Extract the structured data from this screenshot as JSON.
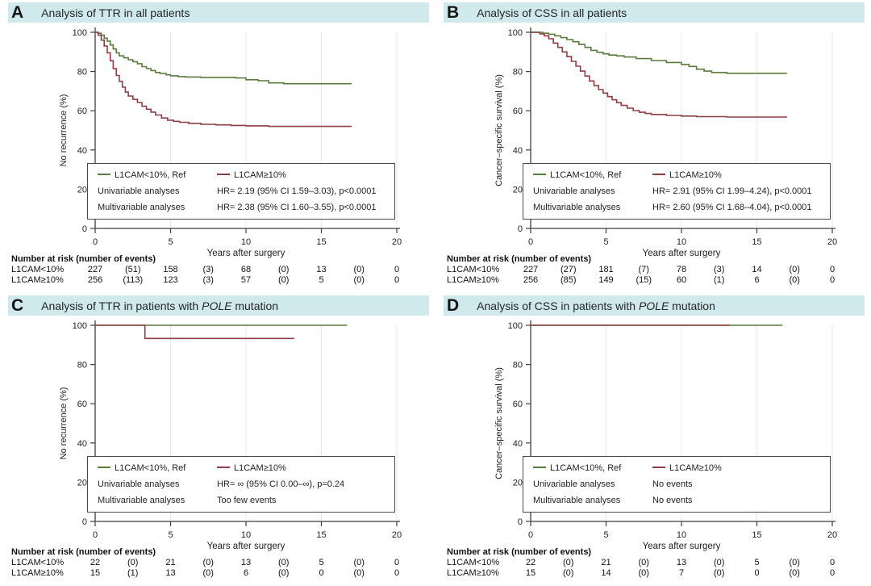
{
  "figure": {
    "colors": {
      "series_green": "#5a7a3e",
      "series_red": "#8e3e42",
      "header_bg": "#cfe9ec",
      "grid": "#f2e4e4",
      "axis": "#3f3f3f"
    }
  },
  "panels": [
    {
      "letter": "A",
      "title_prefix": "Analysis of TTR in all patients",
      "title_italic": "",
      "title_suffix": "",
      "legend": {
        "series": [
          {
            "label": "L1CAM<10%, Ref"
          },
          {
            "label": "L1CAM≥10%"
          }
        ],
        "rows": [
          {
            "label": "Univariable analyses",
            "value": "HR= 2.19 (95% CI 1.59–3.03), p<0.0001"
          },
          {
            "label": "Multivariable analyses",
            "value": "HR= 2.38 (95% CI 1.60–3.55), p<0.0001"
          }
        ]
      },
      "risk_table": {
        "header": "Number at risk (number of events)",
        "rows": [
          {
            "label": "L1CAM<10%",
            "values": [
              "227",
              "(51)",
              "158",
              "(3)",
              "68",
              "(0)",
              "13",
              "(0)",
              "0"
            ]
          },
          {
            "label": "L1CAM≥10%",
            "values": [
              "256",
              "(113)",
              "123",
              "(3)",
              "57",
              "(0)",
              "5",
              "(0)",
              "0"
            ]
          }
        ]
      }
    },
    {
      "letter": "B",
      "title_prefix": "Analysis of CSS in all patients",
      "title_italic": "",
      "title_suffix": "",
      "legend": {
        "series": [
          {
            "label": "L1CAM<10%, Ref"
          },
          {
            "label": "L1CAM≥10%"
          }
        ],
        "rows": [
          {
            "label": "Univariable analyses",
            "value": "HR= 2.91 (95% CI 1.99–4.24), p<0.0001"
          },
          {
            "label": "Multivariable analyses",
            "value": "HR= 2.60 (95% CI 1.68–4.04), p<0.0001"
          }
        ]
      },
      "risk_table": {
        "header": "Number at risk (number of events)",
        "rows": [
          {
            "label": "L1CAM<10%",
            "values": [
              "227",
              "(27)",
              "181",
              "(7)",
              "78",
              "(3)",
              "14",
              "(0)",
              "0"
            ]
          },
          {
            "label": "L1CAM≥10%",
            "values": [
              "256",
              "(85)",
              "149",
              "(15)",
              "60",
              "(1)",
              "6",
              "(0)",
              "0"
            ]
          }
        ]
      }
    },
    {
      "letter": "C",
      "title_prefix": "Analysis of TTR in patients with ",
      "title_italic": "POLE",
      "title_suffix": " mutation",
      "legend": {
        "series": [
          {
            "label": "L1CAM<10%, Ref"
          },
          {
            "label": "L1CAM≥10%"
          }
        ],
        "rows": [
          {
            "label": "Univariable analyses",
            "value": "HR= ∞ (95% CI 0.00–∞), p=0.24"
          },
          {
            "label": "Multivariable analyses",
            "value": "Too few events"
          }
        ]
      },
      "risk_table": {
        "header": "Number at risk (number of events)",
        "rows": [
          {
            "label": "L1CAM<10%",
            "values": [
              "22",
              "(0)",
              "21",
              "(0)",
              "13",
              "(0)",
              "5",
              "(0)",
              "0"
            ]
          },
          {
            "label": "L1CAM≥10%",
            "values": [
              "15",
              "(1)",
              "13",
              "(0)",
              "6",
              "(0)",
              "0",
              "(0)",
              "0"
            ]
          }
        ]
      }
    },
    {
      "letter": "D",
      "title_prefix": "Analysis of CSS in patients with ",
      "title_italic": "POLE",
      "title_suffix": " mutation",
      "legend": {
        "series": [
          {
            "label": "L1CAM<10%, Ref"
          },
          {
            "label": "L1CAM≥10%"
          }
        ],
        "rows": [
          {
            "label": "Univariable analyses",
            "value": "No events"
          },
          {
            "label": "Multivariable analyses",
            "value": "No events"
          }
        ]
      },
      "risk_table": {
        "header": "Number at risk (number of events)",
        "rows": [
          {
            "label": "L1CAM<10%",
            "values": [
              "22",
              "(0)",
              "21",
              "(0)",
              "13",
              "(0)",
              "5",
              "(0)",
              "0"
            ]
          },
          {
            "label": "L1CAM≥10%",
            "values": [
              "15",
              "(0)",
              "14",
              "(0)",
              "7",
              "(0)",
              "0",
              "(0)",
              "0"
            ]
          }
        ]
      }
    }
  ],
  "chart_data": [
    {
      "panel": "A",
      "type": "line",
      "subtype": "kaplan-meier-step",
      "title": "Analysis of TTR in all patients",
      "xlabel": "Years after surgery",
      "ylabel": "No recurrence (%)",
      "xlim": [
        0,
        20
      ],
      "ylim": [
        0,
        100
      ],
      "x_ticks": [
        0,
        5,
        10,
        15,
        20
      ],
      "y_ticks": [
        0,
        20,
        40,
        60,
        80,
        100
      ],
      "grid": "vertical-only",
      "legend_position": "inside-bottom",
      "series": [
        {
          "name": "L1CAM<10%, Ref",
          "color": "#5a7a3e",
          "points": [
            [
              0,
              100
            ],
            [
              0.2,
              99.5
            ],
            [
              0.4,
              98.5
            ],
            [
              0.6,
              97
            ],
            [
              0.8,
              95.5
            ],
            [
              1,
              93.5
            ],
            [
              1.2,
              91.5
            ],
            [
              1.4,
              89.5
            ],
            [
              1.6,
              88
            ],
            [
              1.9,
              87
            ],
            [
              2.2,
              86
            ],
            [
              2.5,
              85
            ],
            [
              2.8,
              84
            ],
            [
              3.1,
              82.5
            ],
            [
              3.4,
              81.5
            ],
            [
              3.7,
              80.5
            ],
            [
              4,
              79.5
            ],
            [
              4.3,
              79
            ],
            [
              4.7,
              78.3
            ],
            [
              5,
              77.8
            ],
            [
              5.5,
              77.4
            ],
            [
              6,
              77.2
            ],
            [
              7,
              77
            ],
            [
              9.3,
              76.7
            ],
            [
              10,
              75.8
            ],
            [
              10.8,
              75.3
            ],
            [
              11.5,
              74.2
            ],
            [
              12.5,
              73.8
            ],
            [
              17,
              73.8
            ]
          ]
        },
        {
          "name": "L1CAM≥10%",
          "color": "#8e3e42",
          "points": [
            [
              0,
              100
            ],
            [
              0.2,
              98.5
            ],
            [
              0.4,
              96
            ],
            [
              0.6,
              93
            ],
            [
              0.8,
              89.5
            ],
            [
              1,
              85.5
            ],
            [
              1.2,
              81.5
            ],
            [
              1.4,
              78
            ],
            [
              1.6,
              75
            ],
            [
              1.8,
              72
            ],
            [
              2,
              69.5
            ],
            [
              2.2,
              67.5
            ],
            [
              2.5,
              65.8
            ],
            [
              2.8,
              64.2
            ],
            [
              3.1,
              62.3
            ],
            [
              3.4,
              60.8
            ],
            [
              3.7,
              59.3
            ],
            [
              4,
              57.8
            ],
            [
              4.4,
              56.3
            ],
            [
              4.8,
              55.2
            ],
            [
              5.2,
              54.6
            ],
            [
              5.6,
              54.1
            ],
            [
              6.2,
              53.6
            ],
            [
              7,
              53.1
            ],
            [
              8,
              52.8
            ],
            [
              9,
              52.5
            ],
            [
              10,
              52.3
            ],
            [
              11.5,
              52
            ],
            [
              17,
              52
            ]
          ]
        }
      ]
    },
    {
      "panel": "B",
      "type": "line",
      "subtype": "kaplan-meier-step",
      "title": "Analysis of CSS in all patients",
      "xlabel": "Years after surgery",
      "ylabel": "Cancer–specific survival (%)",
      "xlim": [
        0,
        20
      ],
      "ylim": [
        0,
        100
      ],
      "x_ticks": [
        0,
        5,
        10,
        15,
        20
      ],
      "y_ticks": [
        0,
        20,
        40,
        60,
        80,
        100
      ],
      "grid": "vertical-only",
      "legend_position": "inside-bottom",
      "series": [
        {
          "name": "L1CAM<10%, Ref",
          "color": "#5a7a3e",
          "points": [
            [
              0,
              100
            ],
            [
              0.8,
              99.5
            ],
            [
              1.2,
              99
            ],
            [
              1.6,
              98.2
            ],
            [
              2,
              97.3
            ],
            [
              2.4,
              96.3
            ],
            [
              2.8,
              95.2
            ],
            [
              3.2,
              93.8
            ],
            [
              3.6,
              92.3
            ],
            [
              4,
              90.8
            ],
            [
              4.4,
              89.8
            ],
            [
              4.8,
              89
            ],
            [
              5.2,
              88.4
            ],
            [
              5.7,
              88
            ],
            [
              6.2,
              87.4
            ],
            [
              7,
              86.6
            ],
            [
              8,
              85.6
            ],
            [
              9,
              84.6
            ],
            [
              10,
              83.6
            ],
            [
              10.5,
              82.6
            ],
            [
              11,
              81.2
            ],
            [
              11.5,
              80.2
            ],
            [
              12,
              79.5
            ],
            [
              13,
              79.1
            ],
            [
              17,
              79.1
            ]
          ]
        },
        {
          "name": "L1CAM≥10%",
          "color": "#8e3e42",
          "points": [
            [
              0,
              100
            ],
            [
              0.6,
              99.2
            ],
            [
              0.9,
              98.2
            ],
            [
              1.2,
              96.7
            ],
            [
              1.5,
              94.5
            ],
            [
              1.8,
              92.3
            ],
            [
              2.1,
              90
            ],
            [
              2.4,
              87.6
            ],
            [
              2.7,
              85.2
            ],
            [
              3,
              82.7
            ],
            [
              3.3,
              80.2
            ],
            [
              3.6,
              77.7
            ],
            [
              3.9,
              75.2
            ],
            [
              4.2,
              72.8
            ],
            [
              4.5,
              70.8
            ],
            [
              4.8,
              69
            ],
            [
              5.1,
              67.2
            ],
            [
              5.4,
              65.6
            ],
            [
              5.7,
              64.1
            ],
            [
              6,
              62.7
            ],
            [
              6.4,
              61.3
            ],
            [
              6.8,
              60.1
            ],
            [
              7.2,
              59.2
            ],
            [
              7.6,
              58.6
            ],
            [
              8,
              58.1
            ],
            [
              9,
              57.6
            ],
            [
              10,
              57.3
            ],
            [
              11,
              57
            ],
            [
              13,
              56.8
            ],
            [
              17,
              56.8
            ]
          ]
        }
      ]
    },
    {
      "panel": "C",
      "type": "line",
      "subtype": "kaplan-meier-step",
      "title": "Analysis of TTR in patients with POLE mutation",
      "xlabel": "Years after surgery",
      "ylabel": "No recurrence (%)",
      "xlim": [
        0,
        20
      ],
      "ylim": [
        0,
        100
      ],
      "x_ticks": [
        0,
        5,
        10,
        15,
        20
      ],
      "y_ticks": [
        0,
        20,
        40,
        60,
        80,
        100
      ],
      "grid": "vertical-only",
      "legend_position": "inside-bottom",
      "series": [
        {
          "name": "L1CAM<10%, Ref",
          "color": "#5a7a3e",
          "points": [
            [
              0,
              100
            ],
            [
              16.7,
              100
            ]
          ]
        },
        {
          "name": "L1CAM≥10%",
          "color": "#8e3e42",
          "points": [
            [
              0,
              100
            ],
            [
              3.3,
              93.3
            ],
            [
              13.2,
              93.3
            ]
          ]
        }
      ]
    },
    {
      "panel": "D",
      "type": "line",
      "subtype": "kaplan-meier-step",
      "title": "Analysis of CSS in patients with POLE mutation",
      "xlabel": "Years after surgery",
      "ylabel": "Cancer–specific survival (%)",
      "xlim": [
        0,
        20
      ],
      "ylim": [
        0,
        100
      ],
      "x_ticks": [
        0,
        5,
        10,
        15,
        20
      ],
      "y_ticks": [
        0,
        20,
        40,
        60,
        80,
        100
      ],
      "grid": "vertical-only",
      "legend_position": "inside-bottom",
      "series": [
        {
          "name": "L1CAM<10%, Ref",
          "color": "#5a7a3e",
          "points": [
            [
              0,
              100
            ],
            [
              16.7,
              100
            ]
          ]
        },
        {
          "name": "L1CAM≥10%",
          "color": "#8e3e42",
          "points": [
            [
              0,
              100
            ],
            [
              13.2,
              100
            ]
          ]
        }
      ]
    }
  ]
}
